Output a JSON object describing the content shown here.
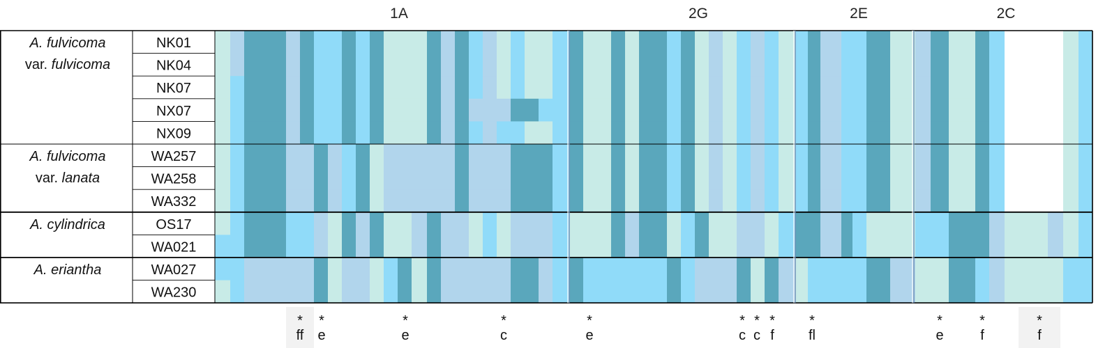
{
  "palette": {
    "mint": "#c8ebe7",
    "skyblue": "#90dbf9",
    "paleblue": "#b1d5ec",
    "teal": "#5aa7bc",
    "white": "#ffffff"
  },
  "region_labels": [
    "1A",
    "2G",
    "2E",
    "2C"
  ],
  "species": [
    {
      "italic": "A. fulvicoma",
      "var_prefix": "var.",
      "var_name": "fulvicoma",
      "specimens": [
        "NK01",
        "NK04",
        "NK07",
        "NX07",
        "NX09"
      ]
    },
    {
      "italic": "A. fulvicoma",
      "var_prefix": "var.",
      "var_name": "lanata",
      "specimens": [
        "WA257",
        "WA258",
        "WA332"
      ]
    },
    {
      "italic": "A. cylindrica",
      "var_prefix": "",
      "var_name": "",
      "specimens": [
        "OS17",
        "WA021"
      ]
    },
    {
      "italic": "A. eriantha",
      "var_prefix": "",
      "var_name": "",
      "specimens": [
        "WA027",
        "WA230"
      ]
    }
  ],
  "annotations": [
    {
      "star": "*",
      "code": "ff",
      "highlight": true
    },
    {
      "star": "*",
      "code": "e",
      "highlight": false
    },
    {
      "star": "*",
      "code": "e",
      "highlight": false
    },
    {
      "star": "*",
      "code": "c",
      "highlight": false
    },
    {
      "star": "*",
      "code": "e",
      "highlight": false
    },
    {
      "star": "*",
      "code": "c",
      "highlight": false
    },
    {
      "star": "*",
      "code": "c",
      "highlight": false
    },
    {
      "star": "*",
      "code": "f",
      "highlight": false
    },
    {
      "star": "*",
      "code": "fl",
      "highlight": false
    },
    {
      "star": "*",
      "code": "e",
      "highlight": false
    },
    {
      "star": "*",
      "code": "f",
      "highlight": false
    },
    {
      "star": "*",
      "code": "f",
      "highlight": true
    }
  ]
}
